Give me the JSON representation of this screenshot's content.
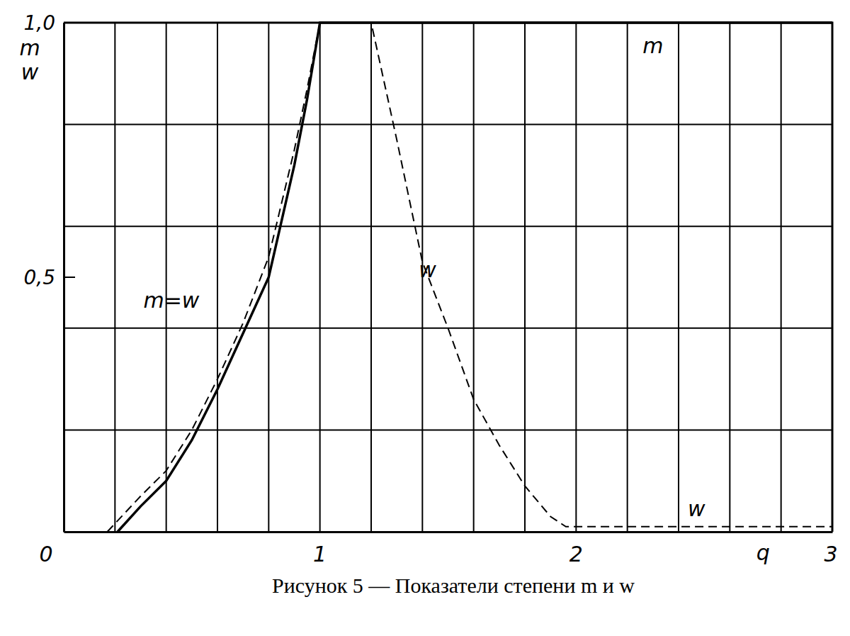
{
  "chart_data": {
    "type": "line",
    "title": "Рисунок 5 — Показатели степени m и w",
    "x_label": "q",
    "y_label": [
      "m",
      "w"
    ],
    "xlim": [
      0,
      3
    ],
    "ylim": [
      0,
      1
    ],
    "xticks": [
      0,
      {
        "value": 0.2,
        "label": null
      },
      {
        "value": 0.4,
        "label": null
      },
      {
        "value": 0.6,
        "label": null
      },
      {
        "value": 0.8,
        "label": null
      },
      1,
      {
        "value": 1.2,
        "label": null
      },
      {
        "value": 1.4,
        "label": null
      },
      {
        "value": 1.6,
        "label": null
      },
      {
        "value": 1.8,
        "label": null
      },
      2,
      {
        "value": 2.2,
        "label": null
      },
      {
        "value": 2.4,
        "label": null
      },
      {
        "value": 2.6,
        "label": null
      },
      {
        "value": 2.8,
        "label": null
      },
      3
    ],
    "yticks": [
      {
        "value": 0.2,
        "label": null
      },
      {
        "value": 0.4,
        "label": null
      },
      {
        "value": 0.5,
        "label": "0,5"
      },
      {
        "value": 0.6,
        "label": null
      },
      {
        "value": 0.8,
        "label": null
      },
      {
        "value": 1,
        "label": "1,0"
      }
    ],
    "grid": true,
    "annotations": [
      "m=w",
      "w",
      "m",
      "w"
    ],
    "series": [
      {
        "name": "m",
        "color": "#000000",
        "line_style": "solid",
        "x": [
          0.21,
          0.3,
          0.4,
          0.5,
          0.6,
          0.7,
          0.8,
          0.9,
          0.95,
          1.0,
          3.0
        ],
        "values": [
          0,
          0.05,
          0.1,
          0.18,
          0.28,
          0.39,
          0.5,
          0.72,
          0.85,
          1.0,
          1.0
        ]
      },
      {
        "name": "w",
        "color": "#000000",
        "line_style": "dashed",
        "x": [
          0.17,
          0.3,
          0.4,
          0.5,
          0.6,
          0.7,
          0.8,
          0.9,
          0.95,
          1.0,
          1.2,
          1.3,
          1.4,
          1.5,
          1.6,
          1.7,
          1.8,
          1.9,
          1.96,
          3.0
        ],
        "values": [
          0,
          0.07,
          0.12,
          0.2,
          0.3,
          0.41,
          0.54,
          0.75,
          0.87,
          1.0,
          1.0,
          0.77,
          0.53,
          0.4,
          0.26,
          0.17,
          0.09,
          0.03,
          0.01,
          0.01
        ]
      }
    ]
  }
}
